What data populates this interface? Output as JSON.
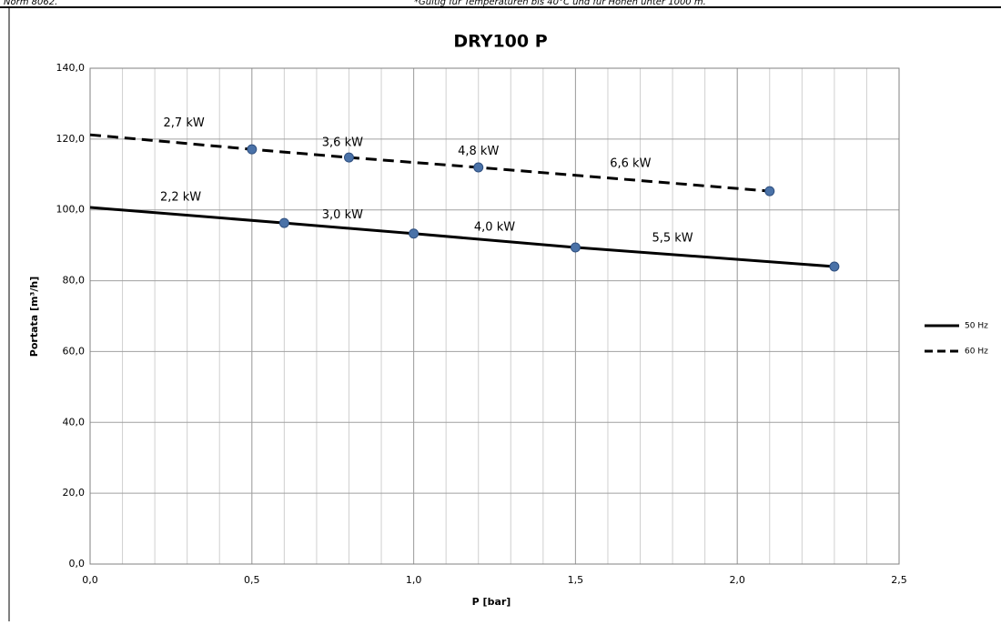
{
  "header": {
    "left": "Norm 8062.",
    "note": "*Gültig für Temperaturen bis 40°C und für Höhen unter 1000 m."
  },
  "chart_data": {
    "type": "line",
    "title": "DRY100 P",
    "x_label": "P [bar]",
    "y_label": "Portata [m³/h]",
    "xlim": [
      0,
      2.5
    ],
    "xticks": [
      {
        "value": 0,
        "label": "0,0"
      },
      {
        "value": 0.5,
        "label": "0,5"
      },
      {
        "value": 1,
        "label": "1,0"
      },
      {
        "value": 1.5,
        "label": "1,5"
      },
      {
        "value": 2,
        "label": "2,0"
      },
      {
        "value": 2.5,
        "label": "2,5"
      }
    ],
    "ylim": [
      0,
      140
    ],
    "yticks": [
      {
        "value": 0,
        "label": "0,0"
      },
      {
        "value": 20,
        "label": "20,0"
      },
      {
        "value": 40,
        "label": "40,0"
      },
      {
        "value": 60,
        "label": "60,0"
      },
      {
        "value": 80,
        "label": "80,0"
      },
      {
        "value": 100,
        "label": "100,0"
      },
      {
        "value": 120,
        "label": "120,0"
      },
      {
        "value": 140,
        "label": "140,0"
      }
    ],
    "grid": true,
    "legend": "right",
    "series": [
      {
        "name": "50 Hz",
        "color": "#000000",
        "dash": false,
        "marker_color": "#4a72a8",
        "x": [
          0,
          0.6,
          1.0,
          1.5,
          2.3
        ],
        "values": [
          100.7,
          96.3,
          93.3,
          89.4,
          84.0
        ],
        "annotations": [
          "2,2 kW",
          "3,0 kW",
          "4,0 kW",
          "5,5 kW"
        ]
      },
      {
        "name": "60 Hz",
        "color": "#000000",
        "dash": true,
        "marker_color": "#4a72a8",
        "x": [
          0,
          0.5,
          0.8,
          1.2,
          2.1
        ],
        "values": [
          121.2,
          117.1,
          114.8,
          112.0,
          105.3
        ],
        "annotations": [
          "2,7 kW",
          "3,6 kW",
          "4,8 kW",
          "6,6 kW"
        ]
      }
    ]
  }
}
